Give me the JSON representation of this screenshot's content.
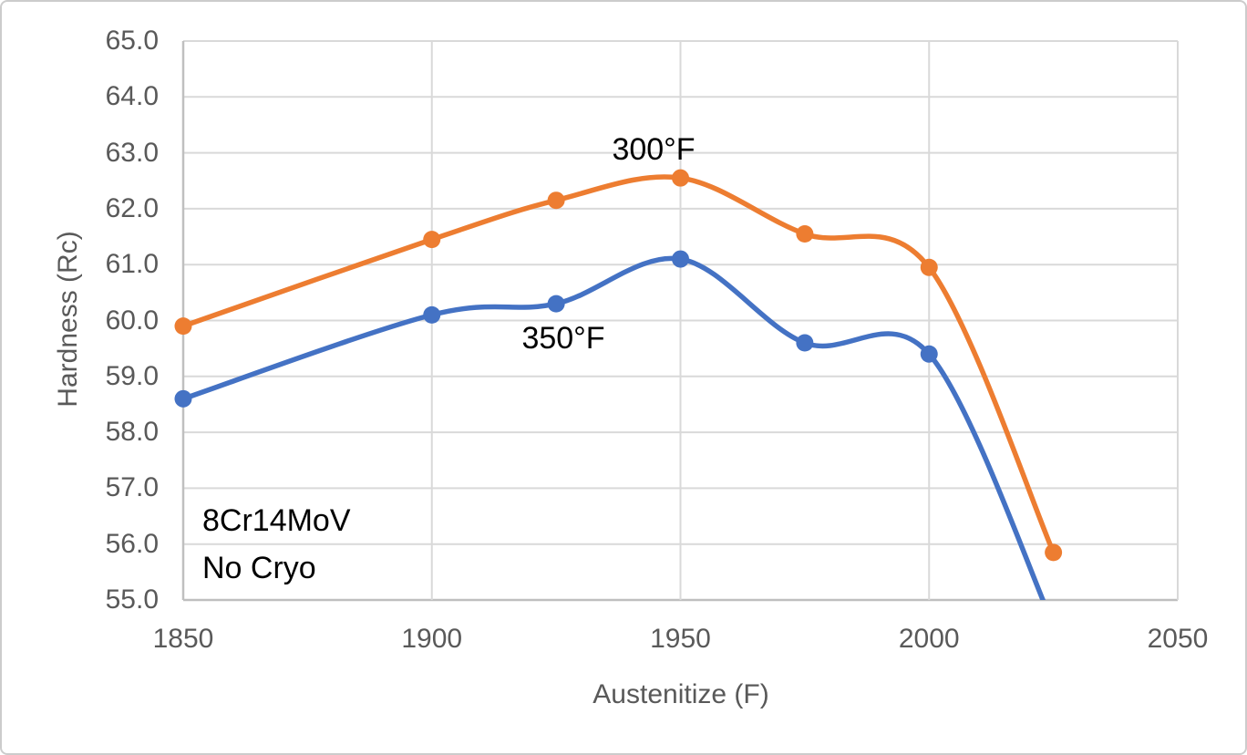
{
  "chart_data": {
    "type": "line",
    "title": "",
    "xlabel": "Austenitize (F)",
    "ylabel": "Hardness (Rc)",
    "xlim": [
      1850,
      2050
    ],
    "ylim": [
      55.0,
      65.0
    ],
    "x_ticks": [
      "1850",
      "1900",
      "1950",
      "2000",
      "2050"
    ],
    "y_ticks": [
      "55.0",
      "56.0",
      "57.0",
      "58.0",
      "59.0",
      "60.0",
      "61.0",
      "62.0",
      "63.0",
      "64.0",
      "65.0"
    ],
    "grid": true,
    "legend_position": "none (series identified by in-plot text labels)",
    "smooth_lines": true,
    "x": [
      1850,
      1900,
      1925,
      1950,
      1975,
      2000,
      2025
    ],
    "series": [
      {
        "name": "300°F",
        "color": "#ED7D31",
        "values": [
          59.9,
          61.45,
          62.15,
          62.55,
          61.55,
          60.95,
          55.85
        ]
      },
      {
        "name": "350°F",
        "color": "#4472C4",
        "values": [
          58.6,
          60.1,
          60.3,
          61.1,
          59.6,
          59.4,
          null
        ],
        "note": "final point at 2025 is below the axis minimum; the line is clipped at 55.0 (exits plot near x=2023)"
      }
    ],
    "annotations": [
      {
        "text": "300°F",
        "role": "series-label-orange"
      },
      {
        "text": "350°F",
        "role": "series-label-blue"
      },
      {
        "text": "8Cr14MoV",
        "role": "note-line-1"
      },
      {
        "text": "No Cryo",
        "role": "note-line-2"
      }
    ],
    "colors": {
      "series_orange": "#ED7D31",
      "series_blue": "#4472C4",
      "gridline": "#D9D9D9",
      "axis_line": "#BFBFBF",
      "tick_text": "#595959",
      "annotation_text": "#000000"
    }
  }
}
